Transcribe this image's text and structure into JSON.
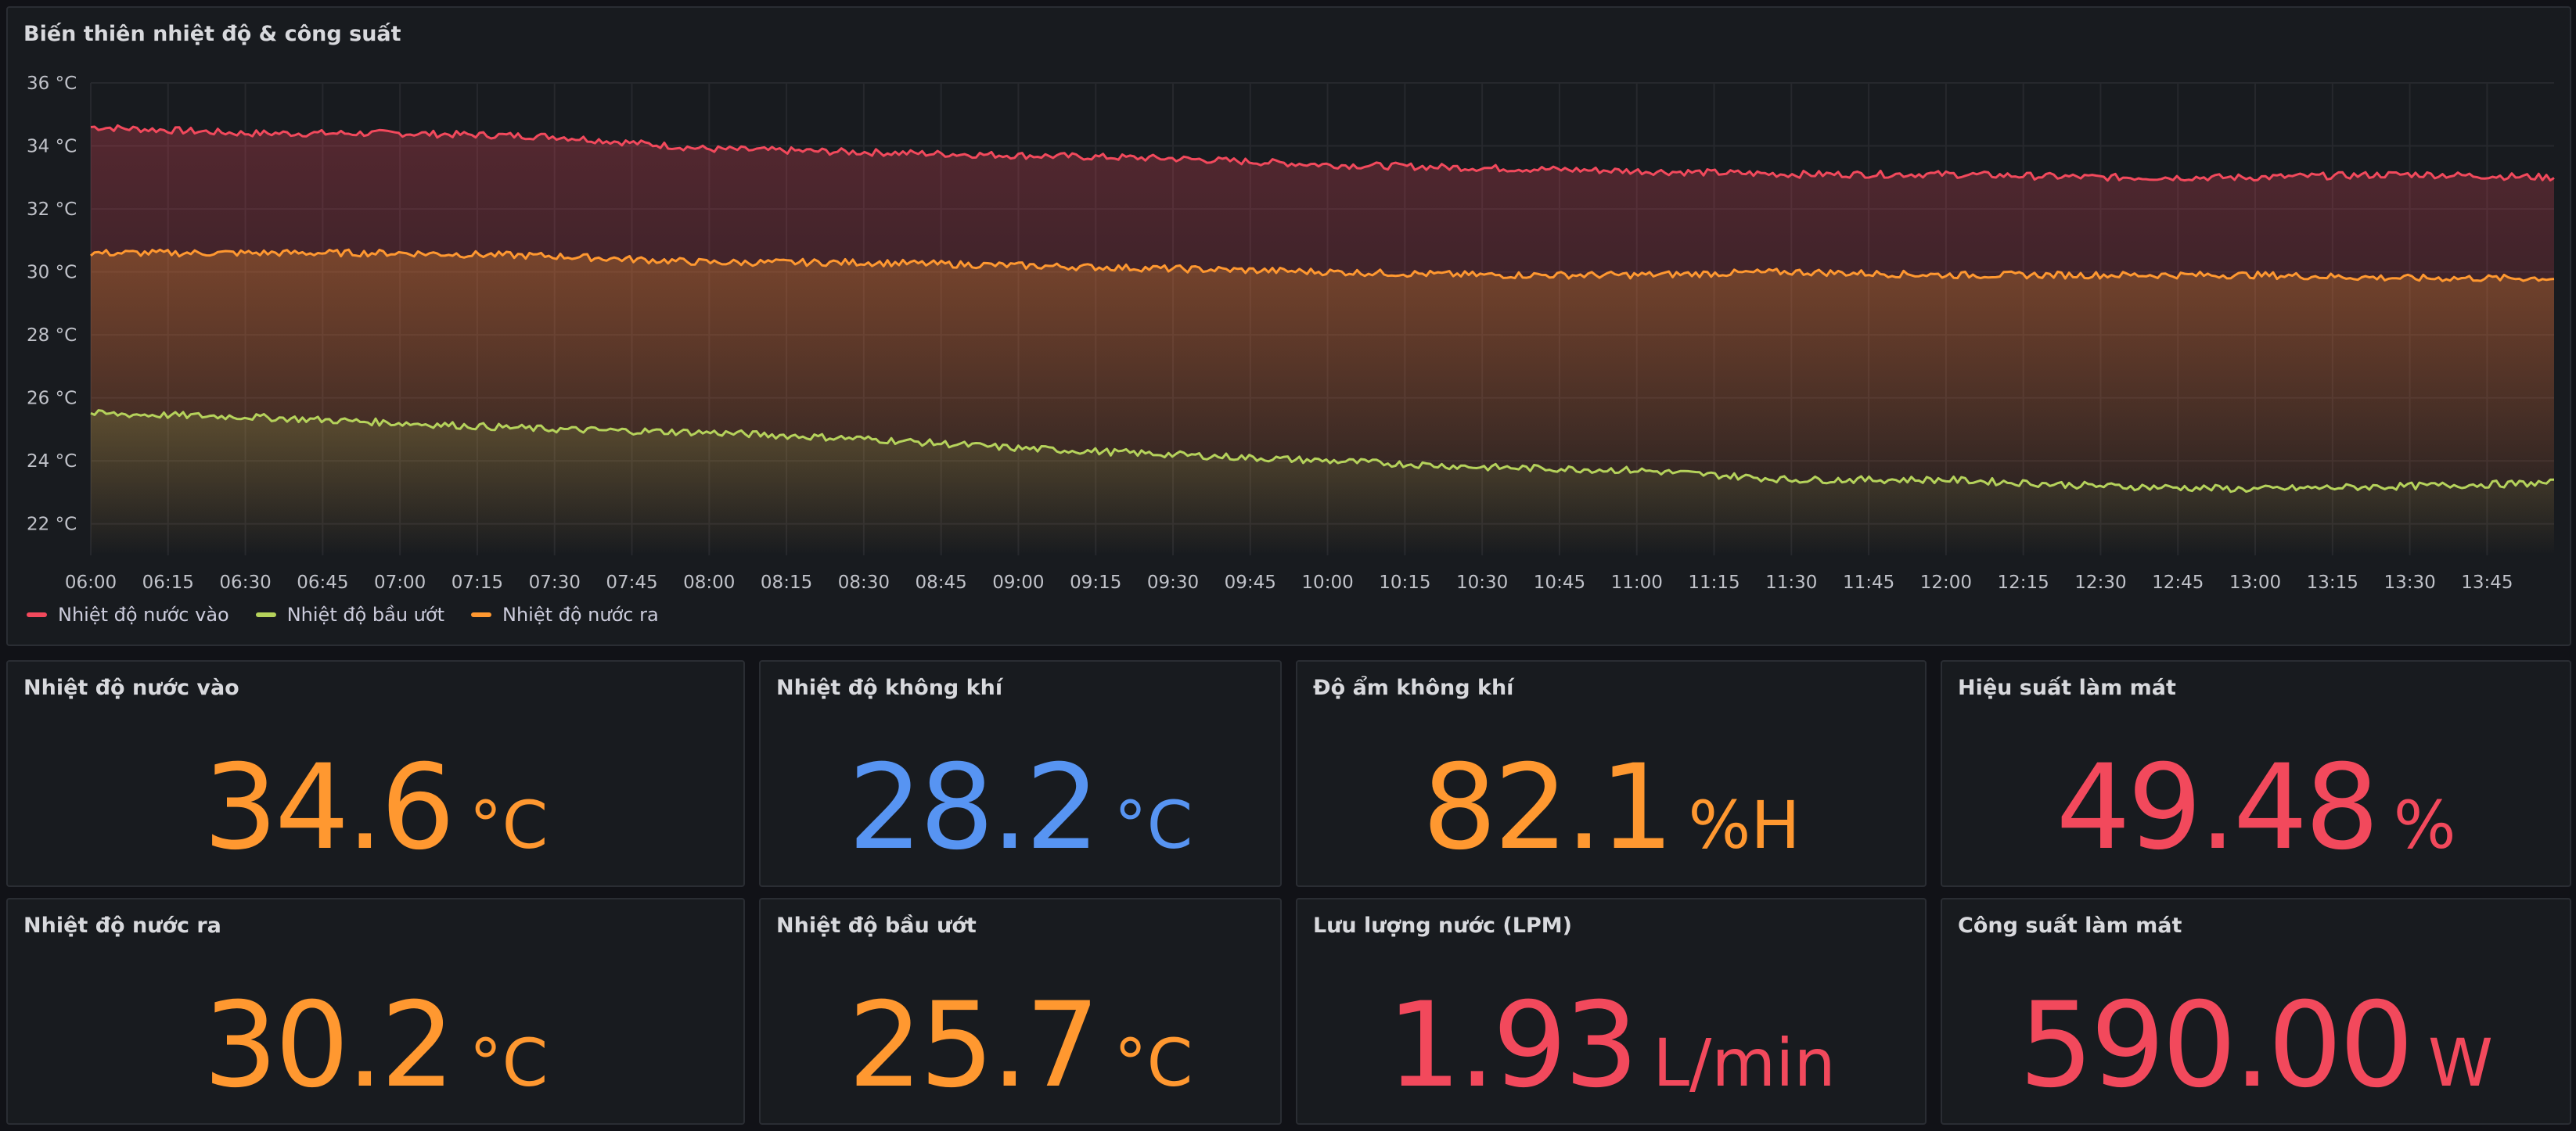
{
  "chart": {
    "title": "Biến thiên nhiệt độ & công suất",
    "legend": [
      {
        "label": "Nhiệt độ nước vào",
        "color": "#f2495c"
      },
      {
        "label": "Nhiệt độ bầu ướt",
        "color": "#b5d25b"
      },
      {
        "label": "Nhiệt độ nước ra",
        "color": "#ff9830"
      }
    ]
  },
  "chart_data": {
    "type": "line",
    "x_ticks": [
      "06:00",
      "06:15",
      "06:30",
      "06:45",
      "07:00",
      "07:15",
      "07:30",
      "07:45",
      "08:00",
      "08:15",
      "08:30",
      "08:45",
      "09:00",
      "09:15",
      "09:30",
      "09:45",
      "10:00",
      "10:15",
      "10:30",
      "10:45",
      "11:00",
      "11:15",
      "11:30",
      "11:45",
      "12:00",
      "12:15",
      "12:30",
      "12:45",
      "13:00",
      "13:15",
      "13:30",
      "13:45"
    ],
    "y_ticks": [
      "36 °C",
      "34 °C",
      "32 °C",
      "30 °C",
      "28 °C",
      "26 °C",
      "24 °C",
      "22 °C"
    ],
    "ylim": [
      21,
      36
    ],
    "xlim": [
      "06:00",
      "13:58"
    ],
    "series": [
      {
        "name": "Nhiệt độ nước vào",
        "color": "#f2495c",
        "points": [
          [
            "06:00",
            34.6
          ],
          [
            "06:30",
            34.4
          ],
          [
            "07:00",
            34.4
          ],
          [
            "07:30",
            34.3
          ],
          [
            "08:00",
            33.9
          ],
          [
            "08:30",
            33.8
          ],
          [
            "09:00",
            33.7
          ],
          [
            "09:30",
            33.6
          ],
          [
            "10:00",
            33.4
          ],
          [
            "10:30",
            33.3
          ],
          [
            "11:00",
            33.2
          ],
          [
            "11:30",
            33.1
          ],
          [
            "12:00",
            33.1
          ],
          [
            "12:30",
            33.0
          ],
          [
            "13:00",
            33.0
          ],
          [
            "13:30",
            33.1
          ],
          [
            "13:58",
            33.0
          ]
        ]
      },
      {
        "name": "Nhiệt độ nước ra",
        "color": "#ff9830",
        "points": [
          [
            "06:00",
            30.6
          ],
          [
            "06:30",
            30.6
          ],
          [
            "07:00",
            30.6
          ],
          [
            "07:30",
            30.5
          ],
          [
            "08:00",
            30.3
          ],
          [
            "08:30",
            30.3
          ],
          [
            "09:00",
            30.2
          ],
          [
            "09:30",
            30.1
          ],
          [
            "10:00",
            30.0
          ],
          [
            "10:30",
            29.9
          ],
          [
            "11:00",
            29.9
          ],
          [
            "11:30",
            30.0
          ],
          [
            "12:00",
            29.9
          ],
          [
            "12:30",
            29.9
          ],
          [
            "13:00",
            29.9
          ],
          [
            "13:30",
            29.8
          ],
          [
            "13:58",
            29.8
          ]
        ]
      },
      {
        "name": "Nhiệt độ bầu ướt",
        "color": "#b5d25b",
        "points": [
          [
            "06:00",
            25.5
          ],
          [
            "06:30",
            25.4
          ],
          [
            "07:00",
            25.2
          ],
          [
            "07:30",
            25.0
          ],
          [
            "08:00",
            24.9
          ],
          [
            "08:30",
            24.7
          ],
          [
            "09:00",
            24.4
          ],
          [
            "09:30",
            24.2
          ],
          [
            "10:00",
            24.0
          ],
          [
            "10:30",
            23.8
          ],
          [
            "11:00",
            23.7
          ],
          [
            "11:30",
            23.4
          ],
          [
            "12:00",
            23.4
          ],
          [
            "12:30",
            23.2
          ],
          [
            "13:00",
            23.1
          ],
          [
            "13:30",
            23.2
          ],
          [
            "13:58",
            23.3
          ]
        ]
      }
    ]
  },
  "stats": [
    {
      "title": "Nhiệt độ nước vào",
      "value": "34.6",
      "unit": "°C",
      "color": "#ff9830"
    },
    {
      "title": "Nhiệt độ không khí",
      "value": "28.2",
      "unit": "°C",
      "color": "#5794f2"
    },
    {
      "title": "Độ ẩm không khí",
      "value": "82.1",
      "unit": "%H",
      "color": "#ff9830"
    },
    {
      "title": "Hiệu suất làm mát",
      "value": "49.48",
      "unit": "%",
      "color": "#f2495c"
    },
    {
      "title": "Nhiệt độ nước ra",
      "value": "30.2",
      "unit": "°C",
      "color": "#ff9830"
    },
    {
      "title": "Nhiệt độ bầu ướt",
      "value": "25.7",
      "unit": "°C",
      "color": "#ff9830"
    },
    {
      "title": "Lưu lượng nước (LPM)",
      "value": "1.93",
      "unit": "L/min",
      "color": "#f2495c"
    },
    {
      "title": "Công suất làm mát",
      "value": "590.00",
      "unit": "W",
      "color": "#f2495c"
    }
  ]
}
